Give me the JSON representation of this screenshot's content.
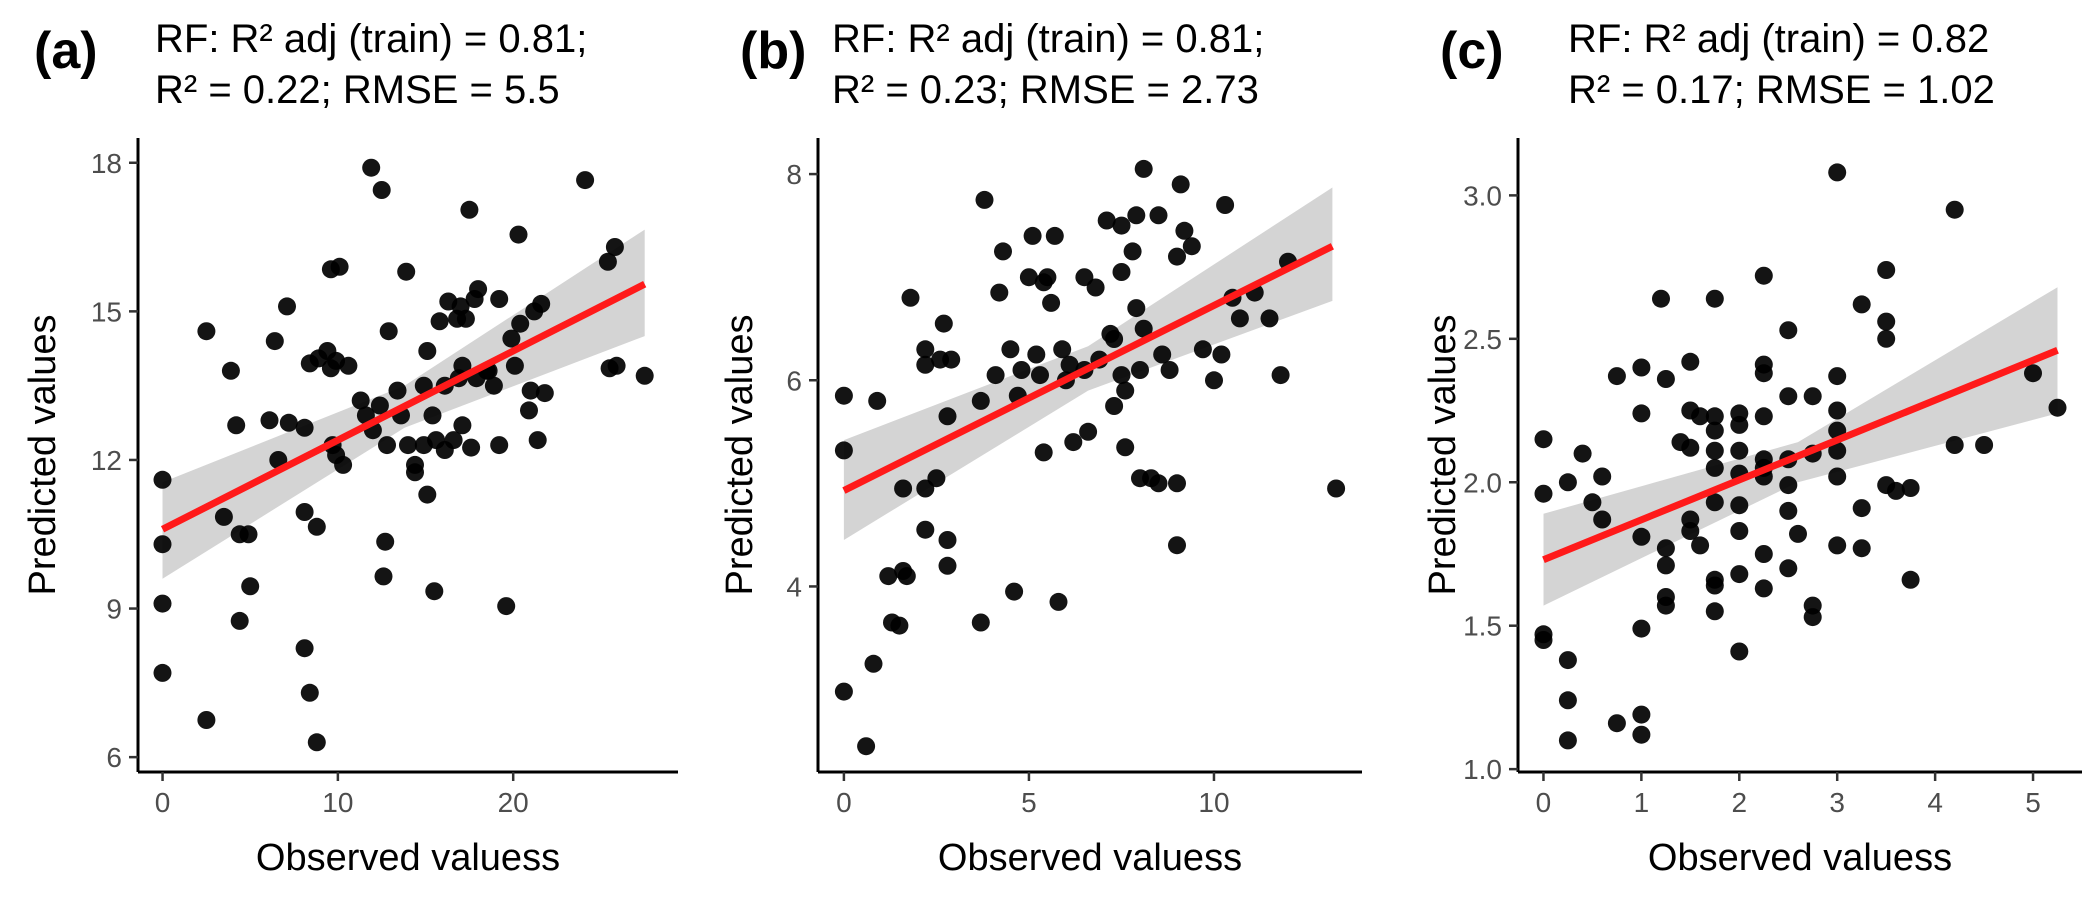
{
  "chart_data": [
    {
      "type": "scatter",
      "panel_label": "(a)",
      "title_lines": [
        "RF: R² adj (train) = 0.81;",
        "R² = 0.22; RMSE = 5.5"
      ],
      "xlabel": "Observed valuess",
      "ylabel": "Predicted values",
      "xlim": [
        -1.4,
        29.4
      ],
      "ylim": [
        5.7,
        18.5
      ],
      "xticks": [
        0,
        10,
        20
      ],
      "yticks": [
        6,
        9,
        12,
        15,
        18
      ],
      "grid": false,
      "fit_line": {
        "x": [
          0,
          27.5
        ],
        "y": [
          10.6,
          15.55
        ]
      },
      "confidence_band": {
        "x": [
          0,
          13.8,
          27.5
        ],
        "upper": [
          11.55,
          13.5,
          16.65
        ],
        "lower": [
          9.6,
          12.65,
          14.5
        ]
      },
      "points": [
        [
          0,
          11.6
        ],
        [
          0,
          10.3
        ],
        [
          0,
          9.1
        ],
        [
          0,
          7.7
        ],
        [
          2.5,
          14.6
        ],
        [
          2.5,
          6.75
        ],
        [
          3.5,
          10.85
        ],
        [
          3.9,
          13.8
        ],
        [
          4.2,
          12.7
        ],
        [
          4.4,
          8.75
        ],
        [
          4.4,
          10.5
        ],
        [
          4.9,
          10.5
        ],
        [
          5.0,
          9.45
        ],
        [
          6.1,
          12.8
        ],
        [
          6.4,
          14.4
        ],
        [
          6.6,
          12.0
        ],
        [
          7.1,
          15.1
        ],
        [
          7.2,
          12.75
        ],
        [
          8.1,
          12.65
        ],
        [
          8.1,
          10.95
        ],
        [
          8.1,
          8.2
        ],
        [
          8.4,
          7.3
        ],
        [
          8.4,
          13.95
        ],
        [
          8.8,
          10.65
        ],
        [
          8.8,
          6.3
        ],
        [
          8.9,
          14.05
        ],
        [
          9.4,
          14.2
        ],
        [
          9.6,
          15.85
        ],
        [
          9.6,
          13.85
        ],
        [
          9.7,
          12.3
        ],
        [
          9.9,
          14.0
        ],
        [
          9.9,
          12.1
        ],
        [
          10.1,
          15.9
        ],
        [
          10.3,
          11.9
        ],
        [
          10.6,
          13.9
        ],
        [
          11.3,
          13.2
        ],
        [
          11.6,
          12.9
        ],
        [
          11.9,
          17.9
        ],
        [
          12.0,
          12.6
        ],
        [
          12.4,
          13.1
        ],
        [
          12.5,
          17.45
        ],
        [
          12.6,
          9.65
        ],
        [
          12.7,
          10.35
        ],
        [
          12.8,
          12.3
        ],
        [
          12.9,
          14.6
        ],
        [
          13.4,
          13.4
        ],
        [
          13.6,
          12.9
        ],
        [
          13.9,
          15.8
        ],
        [
          14.0,
          12.3
        ],
        [
          14.4,
          11.9
        ],
        [
          14.4,
          11.75
        ],
        [
          14.9,
          12.3
        ],
        [
          14.9,
          13.5
        ],
        [
          15.1,
          14.2
        ],
        [
          15.1,
          11.3
        ],
        [
          15.4,
          12.9
        ],
        [
          15.5,
          9.35
        ],
        [
          15.6,
          12.4
        ],
        [
          15.8,
          14.8
        ],
        [
          16.1,
          12.2
        ],
        [
          16.1,
          13.5
        ],
        [
          16.3,
          15.2
        ],
        [
          16.6,
          12.4
        ],
        [
          16.8,
          14.85
        ],
        [
          16.9,
          13.65
        ],
        [
          17.0,
          15.1
        ],
        [
          17.1,
          13.9
        ],
        [
          17.1,
          12.7
        ],
        [
          17.3,
          14.85
        ],
        [
          17.5,
          17.05
        ],
        [
          17.6,
          12.25
        ],
        [
          17.8,
          15.25
        ],
        [
          17.9,
          13.65
        ],
        [
          18.0,
          15.45
        ],
        [
          18.5,
          13.8
        ],
        [
          18.6,
          13.8
        ],
        [
          18.9,
          13.5
        ],
        [
          19.2,
          12.3
        ],
        [
          19.2,
          15.25
        ],
        [
          19.6,
          9.05
        ],
        [
          19.9,
          14.45
        ],
        [
          20.1,
          13.9
        ],
        [
          20.3,
          16.55
        ],
        [
          20.4,
          14.75
        ],
        [
          20.9,
          13.0
        ],
        [
          21.0,
          13.4
        ],
        [
          21.2,
          15.0
        ],
        [
          21.4,
          12.4
        ],
        [
          21.6,
          15.15
        ],
        [
          21.8,
          13.35
        ],
        [
          24.1,
          17.65
        ],
        [
          25.4,
          16.0
        ],
        [
          25.5,
          13.85
        ],
        [
          25.8,
          16.3
        ],
        [
          25.9,
          13.9
        ],
        [
          27.5,
          13.7
        ]
      ]
    },
    {
      "type": "scatter",
      "panel_label": "(b)",
      "title_lines": [
        "RF: R² adj (train) = 0.81;",
        "R² = 0.23; RMSE = 2.73"
      ],
      "xlabel": "Observed valuess",
      "ylabel": "Predicted values",
      "xlim": [
        -0.7,
        14.0
      ],
      "ylim": [
        2.2,
        8.35
      ],
      "xticks": [
        0,
        5,
        10
      ],
      "yticks": [
        4,
        6,
        8
      ],
      "grid": false,
      "fit_line": {
        "x": [
          0,
          13.2
        ],
        "y": [
          4.93,
          7.3
        ]
      },
      "confidence_band": {
        "x": [
          0,
          6.6,
          13.2
        ],
        "upper": [
          5.42,
          6.33,
          7.87
        ],
        "lower": [
          4.45,
          5.9,
          6.77
        ]
      },
      "points": [
        [
          0,
          5.85
        ],
        [
          0,
          5.32
        ],
        [
          0,
          2.98
        ],
        [
          0.6,
          2.45
        ],
        [
          0.8,
          3.25
        ],
        [
          0.9,
          5.8
        ],
        [
          1.2,
          4.1
        ],
        [
          1.3,
          3.65
        ],
        [
          1.5,
          3.62
        ],
        [
          1.6,
          4.15
        ],
        [
          1.6,
          4.95
        ],
        [
          1.7,
          4.1
        ],
        [
          1.8,
          6.8
        ],
        [
          2.2,
          4.55
        ],
        [
          2.2,
          4.95
        ],
        [
          2.2,
          6.3
        ],
        [
          2.2,
          6.15
        ],
        [
          2.5,
          5.05
        ],
        [
          2.6,
          6.2
        ],
        [
          2.7,
          6.55
        ],
        [
          2.8,
          5.65
        ],
        [
          2.8,
          4.45
        ],
        [
          2.8,
          4.2
        ],
        [
          2.9,
          6.2
        ],
        [
          3.7,
          3.65
        ],
        [
          3.7,
          5.8
        ],
        [
          3.8,
          7.75
        ],
        [
          4.1,
          6.05
        ],
        [
          4.2,
          6.85
        ],
        [
          4.3,
          7.25
        ],
        [
          4.5,
          6.3
        ],
        [
          4.6,
          3.95
        ],
        [
          4.7,
          5.85
        ],
        [
          4.8,
          6.1
        ],
        [
          5.0,
          7.0
        ],
        [
          5.1,
          7.4
        ],
        [
          5.2,
          6.25
        ],
        [
          5.3,
          6.05
        ],
        [
          5.4,
          5.3
        ],
        [
          5.4,
          6.95
        ],
        [
          5.5,
          7.0
        ],
        [
          5.6,
          6.75
        ],
        [
          5.7,
          7.4
        ],
        [
          5.8,
          3.85
        ],
        [
          5.9,
          6.3
        ],
        [
          6.0,
          6.0
        ],
        [
          6.1,
          6.15
        ],
        [
          6.2,
          5.4
        ],
        [
          6.5,
          6.1
        ],
        [
          6.5,
          7.0
        ],
        [
          6.6,
          5.5
        ],
        [
          6.8,
          6.9
        ],
        [
          6.9,
          6.2
        ],
        [
          7.1,
          7.55
        ],
        [
          7.2,
          6.45
        ],
        [
          7.3,
          6.4
        ],
        [
          7.3,
          5.75
        ],
        [
          7.5,
          7.5
        ],
        [
          7.5,
          7.05
        ],
        [
          7.5,
          6.05
        ],
        [
          7.6,
          5.9
        ],
        [
          7.6,
          5.35
        ],
        [
          7.8,
          7.25
        ],
        [
          7.9,
          6.7
        ],
        [
          7.9,
          7.6
        ],
        [
          8.0,
          6.1
        ],
        [
          8.0,
          5.05
        ],
        [
          8.1,
          6.5
        ],
        [
          8.1,
          8.05
        ],
        [
          8.3,
          5.05
        ],
        [
          8.5,
          7.6
        ],
        [
          8.5,
          5.0
        ],
        [
          8.6,
          6.25
        ],
        [
          8.8,
          6.1
        ],
        [
          9.0,
          5.0
        ],
        [
          9.0,
          7.2
        ],
        [
          9.0,
          4.4
        ],
        [
          9.1,
          7.9
        ],
        [
          9.2,
          7.45
        ],
        [
          9.4,
          7.3
        ],
        [
          9.7,
          6.3
        ],
        [
          10.0,
          6.0
        ],
        [
          10.2,
          6.25
        ],
        [
          10.3,
          7.7
        ],
        [
          10.5,
          6.8
        ],
        [
          10.7,
          6.6
        ],
        [
          11.1,
          6.85
        ],
        [
          11.5,
          6.6
        ],
        [
          11.8,
          6.05
        ],
        [
          12.0,
          7.15
        ],
        [
          13.3,
          4.95
        ]
      ]
    },
    {
      "type": "scatter",
      "panel_label": "(c)",
      "title_lines": [
        "RF: R² adj (train) = 0.82",
        "R² = 0.17; RMSE = 1.02"
      ],
      "xlabel": "Observed valuess",
      "ylabel": "Predicted values",
      "xlim": [
        -0.26,
        5.5
      ],
      "ylim": [
        0.99,
        3.2
      ],
      "xticks": [
        0,
        1,
        2,
        3,
        4,
        5
      ],
      "yticks": [
        1.0,
        1.5,
        2.0,
        2.5,
        3.0
      ],
      "grid": false,
      "fit_line": {
        "x": [
          0,
          5.25
        ],
        "y": [
          1.73,
          2.46
        ]
      },
      "confidence_band": {
        "x": [
          0,
          2.6,
          5.25
        ],
        "upper": [
          1.89,
          2.14,
          2.68
        ],
        "lower": [
          1.57,
          2.0,
          2.24
        ]
      },
      "points": [
        [
          0,
          2.15
        ],
        [
          0,
          1.96
        ],
        [
          0,
          1.47
        ],
        [
          0,
          1.45
        ],
        [
          0.25,
          2.0
        ],
        [
          0.25,
          1.38
        ],
        [
          0.25,
          1.24
        ],
        [
          0.25,
          1.1
        ],
        [
          0.4,
          2.1
        ],
        [
          0.5,
          1.93
        ],
        [
          0.6,
          2.02
        ],
        [
          0.6,
          1.87
        ],
        [
          0.75,
          2.37
        ],
        [
          0.75,
          1.16
        ],
        [
          1.0,
          2.4
        ],
        [
          1.0,
          2.24
        ],
        [
          1.0,
          1.81
        ],
        [
          1.0,
          1.49
        ],
        [
          1.0,
          1.19
        ],
        [
          1.0,
          1.12
        ],
        [
          1.2,
          2.64
        ],
        [
          1.25,
          2.36
        ],
        [
          1.25,
          1.77
        ],
        [
          1.25,
          1.71
        ],
        [
          1.25,
          1.6
        ],
        [
          1.25,
          1.57
        ],
        [
          1.4,
          2.14
        ],
        [
          1.5,
          2.42
        ],
        [
          1.5,
          2.25
        ],
        [
          1.5,
          2.12
        ],
        [
          1.5,
          1.87
        ],
        [
          1.5,
          1.83
        ],
        [
          1.6,
          2.23
        ],
        [
          1.6,
          1.78
        ],
        [
          1.75,
          2.64
        ],
        [
          1.75,
          2.23
        ],
        [
          1.75,
          2.18
        ],
        [
          1.75,
          2.11
        ],
        [
          1.75,
          2.05
        ],
        [
          1.75,
          1.93
        ],
        [
          1.75,
          1.66
        ],
        [
          1.75,
          1.64
        ],
        [
          1.75,
          1.55
        ],
        [
          2.0,
          2.24
        ],
        [
          2.0,
          2.2
        ],
        [
          2.0,
          2.11
        ],
        [
          2.0,
          2.03
        ],
        [
          2.0,
          1.92
        ],
        [
          2.0,
          1.83
        ],
        [
          2.0,
          1.68
        ],
        [
          2.0,
          1.41
        ],
        [
          2.25,
          2.72
        ],
        [
          2.25,
          2.41
        ],
        [
          2.25,
          2.38
        ],
        [
          2.25,
          2.23
        ],
        [
          2.25,
          2.08
        ],
        [
          2.25,
          2.05
        ],
        [
          2.25,
          2.02
        ],
        [
          2.25,
          1.75
        ],
        [
          2.25,
          1.63
        ],
        [
          2.5,
          2.53
        ],
        [
          2.5,
          2.3
        ],
        [
          2.5,
          2.08
        ],
        [
          2.5,
          1.99
        ],
        [
          2.5,
          1.9
        ],
        [
          2.5,
          1.7
        ],
        [
          2.6,
          1.82
        ],
        [
          2.75,
          2.3
        ],
        [
          2.75,
          2.1
        ],
        [
          2.75,
          1.57
        ],
        [
          2.75,
          1.53
        ],
        [
          3.0,
          3.08
        ],
        [
          3.0,
          2.37
        ],
        [
          3.0,
          2.25
        ],
        [
          3.0,
          2.18
        ],
        [
          3.0,
          2.11
        ],
        [
          3.0,
          2.02
        ],
        [
          3.0,
          1.78
        ],
        [
          3.25,
          2.62
        ],
        [
          3.25,
          1.91
        ],
        [
          3.25,
          1.77
        ],
        [
          3.5,
          2.74
        ],
        [
          3.5,
          2.56
        ],
        [
          3.5,
          2.5
        ],
        [
          3.5,
          1.99
        ],
        [
          3.6,
          1.97
        ],
        [
          3.75,
          1.98
        ],
        [
          3.75,
          1.66
        ],
        [
          4.2,
          2.95
        ],
        [
          4.2,
          2.13
        ],
        [
          4.5,
          2.13
        ],
        [
          5.0,
          2.38
        ],
        [
          5.25,
          2.26
        ]
      ]
    }
  ]
}
